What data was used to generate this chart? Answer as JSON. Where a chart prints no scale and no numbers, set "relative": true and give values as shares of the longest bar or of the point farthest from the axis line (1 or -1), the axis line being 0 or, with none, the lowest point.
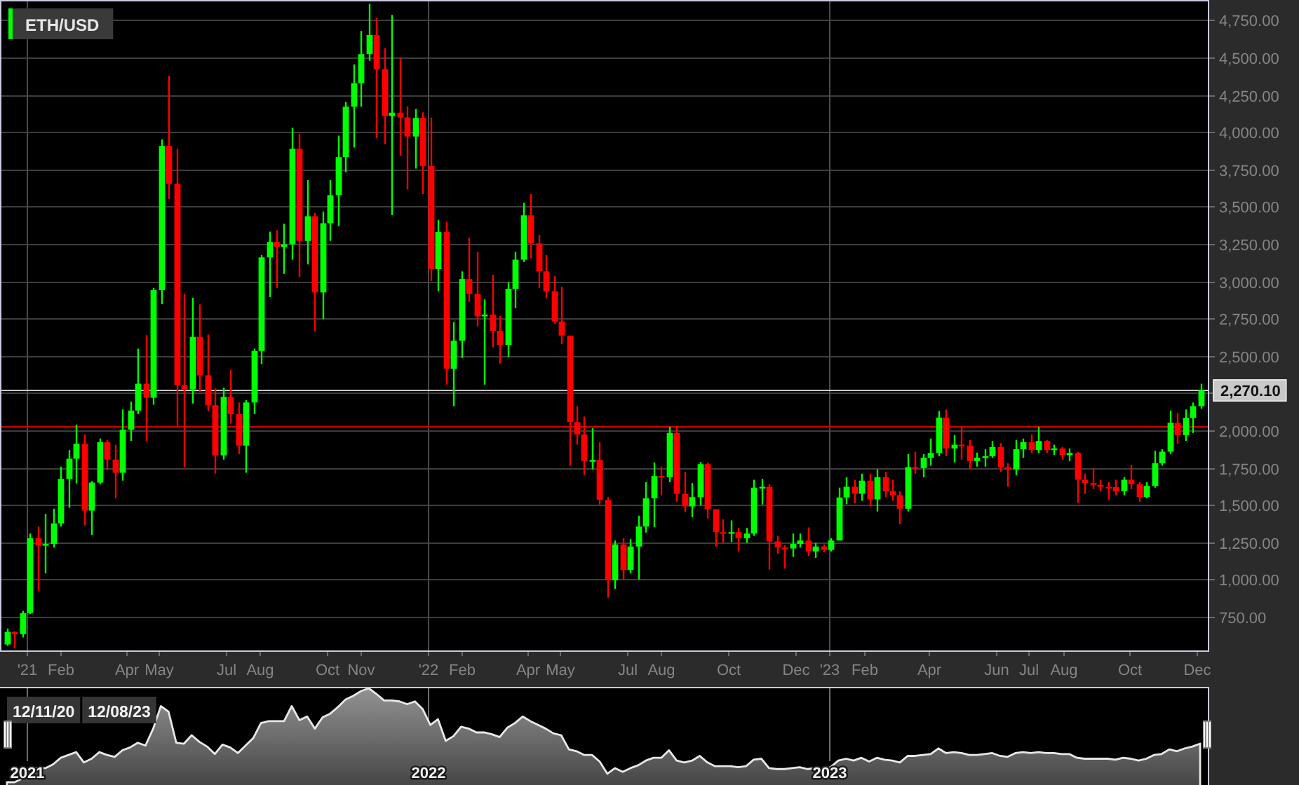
{
  "chart_data": [
    {
      "type": "candlestick",
      "x": [
        "2020-12-14",
        "2020-12-21",
        "2020-12-28",
        "2021-01-04",
        "2021-01-11",
        "2021-01-18",
        "2021-01-25",
        "2021-02-01",
        "2021-02-08",
        "2021-02-15",
        "2021-02-22",
        "2021-03-01",
        "2021-03-08",
        "2021-03-15",
        "2021-03-22",
        "2021-03-29",
        "2021-04-05",
        "2021-04-12",
        "2021-04-19",
        "2021-04-26",
        "2021-05-03",
        "2021-05-10",
        "2021-05-17",
        "2021-05-24",
        "2021-05-31",
        "2021-06-07",
        "2021-06-14",
        "2021-06-21",
        "2021-06-28",
        "2021-07-05",
        "2021-07-12",
        "2021-07-19",
        "2021-07-26",
        "2021-08-02",
        "2021-08-09",
        "2021-08-16",
        "2021-08-23",
        "2021-08-30",
        "2021-09-06",
        "2021-09-13",
        "2021-09-20",
        "2021-09-27",
        "2021-10-04",
        "2021-10-11",
        "2021-10-18",
        "2021-10-25",
        "2021-11-01",
        "2021-11-08",
        "2021-11-15",
        "2021-11-22",
        "2021-11-29",
        "2021-12-06",
        "2021-12-13",
        "2021-12-20",
        "2021-12-27",
        "2022-01-03",
        "2022-01-10",
        "2022-01-17",
        "2022-01-24",
        "2022-01-31",
        "2022-02-07",
        "2022-02-14",
        "2022-02-21",
        "2022-02-28",
        "2022-03-07",
        "2022-03-14",
        "2022-03-21",
        "2022-03-28",
        "2022-04-04",
        "2022-04-11",
        "2022-04-18",
        "2022-04-25",
        "2022-05-02",
        "2022-05-09",
        "2022-05-16",
        "2022-05-23",
        "2022-05-30",
        "2022-06-06",
        "2022-06-13",
        "2022-06-20",
        "2022-06-27",
        "2022-07-04",
        "2022-07-11",
        "2022-07-18",
        "2022-07-25",
        "2022-08-01",
        "2022-08-08",
        "2022-08-15",
        "2022-08-22",
        "2022-08-29",
        "2022-09-05",
        "2022-09-12",
        "2022-09-19",
        "2022-09-26",
        "2022-10-03",
        "2022-10-10",
        "2022-10-17",
        "2022-10-24",
        "2022-10-31",
        "2022-11-07",
        "2022-11-14",
        "2022-11-21",
        "2022-11-28",
        "2022-12-05",
        "2022-12-12",
        "2022-12-19",
        "2022-12-26",
        "2023-01-02",
        "2023-01-09",
        "2023-01-16",
        "2023-01-23",
        "2023-01-30",
        "2023-02-06",
        "2023-02-13",
        "2023-02-20",
        "2023-02-27",
        "2023-03-06",
        "2023-03-13",
        "2023-03-20",
        "2023-03-27",
        "2023-04-03",
        "2023-04-10",
        "2023-04-17",
        "2023-04-24",
        "2023-05-01",
        "2023-05-08",
        "2023-05-15",
        "2023-05-22",
        "2023-05-29",
        "2023-06-05",
        "2023-06-12",
        "2023-06-19",
        "2023-06-26",
        "2023-07-03",
        "2023-07-10",
        "2023-07-17",
        "2023-07-24",
        "2023-07-31",
        "2023-08-07",
        "2023-08-14",
        "2023-08-21",
        "2023-08-28",
        "2023-09-04",
        "2023-09-11",
        "2023-09-18",
        "2023-09-25",
        "2023-10-02",
        "2023-10-09",
        "2023-10-16",
        "2023-10-23",
        "2023-10-30",
        "2023-11-06",
        "2023-11-13",
        "2023-11-20",
        "2023-11-27",
        "2023-12-04"
      ],
      "series": [
        {
          "name": "ETH/USD",
          "color": "#00ff00",
          "ohlc": [
            [
              565,
              672,
              555,
              650
            ],
            [
              650,
              653,
              540,
              634
            ],
            [
              634,
              791,
              612,
              775
            ],
            [
              775,
              1308,
              768,
              1277
            ],
            [
              1277,
              1355,
              926,
              1227
            ],
            [
              1227,
              1440,
              1042,
              1239
            ],
            [
              1239,
              1475,
              1214,
              1377
            ],
            [
              1377,
              1757,
              1355,
              1675
            ],
            [
              1675,
              1867,
              1481,
              1810
            ],
            [
              1810,
              2039,
              1644,
              1911
            ],
            [
              1911,
              1973,
              1362,
              1462
            ],
            [
              1462,
              1660,
              1299,
              1650
            ],
            [
              1650,
              1945,
              1638,
              1920
            ],
            [
              1920,
              1936,
              1732,
              1804
            ],
            [
              1804,
              1904,
              1544,
              1716
            ],
            [
              1716,
              2140,
              1663,
              2005
            ],
            [
              2005,
              2193,
              1930,
              2133
            ],
            [
              2133,
              2547,
              2108,
              2312
            ],
            [
              2312,
              2638,
              1930,
              2218
            ],
            [
              2218,
              2955,
              2171,
              2940
            ],
            [
              2940,
              3950,
              2846,
              3906
            ],
            [
              3906,
              4376,
              3551,
              3652
            ],
            [
              3652,
              3887,
              2030,
              2303
            ],
            [
              2303,
              2915,
              1754,
              2275
            ],
            [
              2275,
              2889,
              2180,
              2626
            ],
            [
              2626,
              2845,
              2259,
              2369
            ],
            [
              2369,
              2642,
              2130,
              2168
            ],
            [
              2168,
              2281,
              1710,
              1832
            ],
            [
              1832,
              2287,
              1804,
              2224
            ],
            [
              2224,
              2406,
              2046,
              2108
            ],
            [
              2108,
              2187,
              1842,
              1898
            ],
            [
              1898,
              2202,
              1716,
              2187
            ],
            [
              2187,
              2547,
              2108,
              2532
            ],
            [
              2532,
              3175,
              2444,
              3159
            ],
            [
              3159,
              3332,
              2893,
              3263
            ],
            [
              3263,
              3341,
              2955,
              3228
            ],
            [
              3228,
              3385,
              3049,
              3247
            ],
            [
              3247,
              4028,
              3144,
              3887
            ],
            [
              3887,
              3987,
              3028,
              3269
            ],
            [
              3269,
              3677,
              3112,
              3435
            ],
            [
              3435,
              3457,
              2664,
              2924
            ],
            [
              2924,
              3467,
              2745,
              3388
            ],
            [
              3388,
              3677,
              3269,
              3576
            ],
            [
              3576,
              3975,
              3369,
              3831
            ],
            [
              3831,
              4201,
              3730,
              4169
            ],
            [
              4169,
              4452,
              3896,
              4326
            ],
            [
              4326,
              4677,
              4169,
              4521
            ],
            [
              4521,
              4859,
              4477,
              4649
            ],
            [
              4649,
              4765,
              3959,
              4420
            ],
            [
              4420,
              4561,
              3918,
              4107
            ],
            [
              4107,
              4784,
              3442,
              4129
            ],
            [
              4129,
              4499,
              3840,
              4097
            ],
            [
              4097,
              4172,
              3614,
              3969
            ],
            [
              3969,
              4154,
              3755,
              4094
            ],
            [
              4094,
              4132,
              3583,
              3771
            ],
            [
              3771,
              4096,
              3002,
              3081
            ],
            [
              3081,
              3410,
              2933,
              3329
            ],
            [
              3329,
              3395,
              2306,
              2413
            ],
            [
              2413,
              2726,
              2162,
              2601
            ],
            [
              2601,
              3065,
              2485,
              3015
            ],
            [
              3015,
              3291,
              2861,
              2915
            ],
            [
              2915,
              3197,
              2698,
              2764
            ],
            [
              2764,
              2877,
              2306,
              2776
            ],
            [
              2776,
              3043,
              2557,
              2667
            ],
            [
              2667,
              2767,
              2447,
              2573
            ],
            [
              2573,
              2993,
              2491,
              2949
            ],
            [
              2949,
              3197,
              2820,
              3144
            ],
            [
              3144,
              3526,
              3128,
              3441
            ],
            [
              3441,
              3583,
              3153,
              3253
            ],
            [
              3253,
              3310,
              2955,
              3065
            ],
            [
              3065,
              3175,
              2886,
              2933
            ],
            [
              2933,
              3034,
              2714,
              2729
            ],
            [
              2729,
              2962,
              2579,
              2635
            ],
            [
              2635,
              2635,
              1763,
              2055
            ],
            [
              2055,
              2162,
              1904,
              1973
            ],
            [
              1973,
              2093,
              1700,
              1795
            ],
            [
              1795,
              2014,
              1738,
              1801
            ],
            [
              1801,
              1920,
              1503,
              1534
            ],
            [
              1534,
              1553,
              879,
              995
            ],
            [
              995,
              1261,
              938,
              1236
            ],
            [
              1236,
              1277,
              995,
              1064
            ],
            [
              1064,
              1271,
              1042,
              1221
            ],
            [
              1221,
              1428,
              1001,
              1355
            ],
            [
              1355,
              1653,
              1315,
              1544
            ],
            [
              1544,
              1785,
              1352,
              1694
            ],
            [
              1694,
              1757,
              1566,
              1685
            ],
            [
              1685,
              2024,
              1653,
              1983
            ],
            [
              1983,
              2030,
              1522,
              1575
            ],
            [
              1575,
              1722,
              1450,
              1490
            ],
            [
              1490,
              1647,
              1418,
              1553
            ],
            [
              1553,
              1788,
              1497,
              1773
            ],
            [
              1773,
              1785,
              1409,
              1472
            ],
            [
              1472,
              1472,
              1221,
              1318
            ],
            [
              1318,
              1403,
              1246,
              1308
            ],
            [
              1308,
              1396,
              1252,
              1318
            ],
            [
              1318,
              1346,
              1189,
              1277
            ],
            [
              1277,
              1346,
              1246,
              1308
            ],
            [
              1308,
              1669,
              1293,
              1616
            ],
            [
              1616,
              1675,
              1503,
              1622
            ],
            [
              1622,
              1638,
              1067,
              1255
            ],
            [
              1255,
              1293,
              1173,
              1214
            ],
            [
              1214,
              1230,
              1073,
              1208
            ],
            [
              1208,
              1308,
              1152,
              1239
            ],
            [
              1239,
              1308,
              1214,
              1261
            ],
            [
              1261,
              1349,
              1158,
              1189
            ],
            [
              1189,
              1246,
              1145,
              1221
            ],
            [
              1221,
              1236,
              1183,
              1199
            ],
            [
              1199,
              1277,
              1189,
              1261
            ],
            [
              1261,
              1616,
              1261,
              1550
            ],
            [
              1550,
              1685,
              1506,
              1622
            ],
            [
              1622,
              1669,
              1512,
              1575
            ],
            [
              1575,
              1710,
              1528,
              1663
            ],
            [
              1663,
              1710,
              1490,
              1537
            ],
            [
              1537,
              1738,
              1456,
              1685
            ],
            [
              1685,
              1722,
              1553,
              1591
            ],
            [
              1591,
              1669,
              1528,
              1566
            ],
            [
              1566,
              1591,
              1371,
              1475
            ],
            [
              1475,
              1842,
              1456,
              1754
            ],
            [
              1754,
              1857,
              1710,
              1748
            ],
            [
              1748,
              1842,
              1685,
              1817
            ],
            [
              1817,
              1945,
              1763,
              1848
            ],
            [
              1848,
              2130,
              1826,
              2086
            ],
            [
              2086,
              2140,
              1826,
              1879
            ],
            [
              1879,
              1967,
              1785,
              1904
            ],
            [
              1904,
              2024,
              1804,
              1898
            ],
            [
              1898,
              1936,
              1741,
              1795
            ],
            [
              1795,
              1851,
              1757,
              1817
            ],
            [
              1817,
              1873,
              1757,
              1826
            ],
            [
              1826,
              1929,
              1817,
              1889
            ],
            [
              1889,
              1914,
              1722,
              1754
            ],
            [
              1754,
              1779,
              1622,
              1738
            ],
            [
              1738,
              1936,
              1700,
              1873
            ],
            [
              1873,
              1945,
              1817,
              1920
            ],
            [
              1920,
              1973,
              1848,
              1867
            ],
            [
              1867,
              2024,
              1848,
              1929
            ],
            [
              1929,
              1936,
              1848,
              1867
            ],
            [
              1867,
              1904,
              1835,
              1879
            ],
            [
              1879,
              1889,
              1804,
              1835
            ],
            [
              1835,
              1879,
              1795,
              1848
            ],
            [
              1848,
              1857,
              1512,
              1669
            ],
            [
              1669,
              1710,
              1575,
              1647
            ],
            [
              1647,
              1748,
              1606,
              1635
            ],
            [
              1635,
              1669,
              1591,
              1622
            ],
            [
              1622,
              1653,
              1534,
              1619
            ],
            [
              1619,
              1669,
              1566,
              1591
            ],
            [
              1591,
              1685,
              1566,
              1669
            ],
            [
              1669,
              1770,
              1606,
              1638
            ],
            [
              1638,
              1653,
              1522,
              1553
            ],
            [
              1553,
              1653,
              1544,
              1628
            ],
            [
              1628,
              1864,
              1616,
              1779
            ],
            [
              1779,
              1873,
              1763,
              1857
            ],
            [
              1857,
              2133,
              1842,
              2052
            ],
            [
              2052,
              2118,
              1911,
              1967
            ],
            [
              1967,
              2140,
              1930,
              2083
            ],
            [
              2083,
              2187,
              1983,
              2162
            ],
            [
              2162,
              2312,
              2146,
              2270.1
            ]
          ],
          "colors": [
            "#00ff00",
            "#ff0000",
            "#00ff00",
            "#00ff00",
            "#ff0000",
            "#00ff00",
            "#00ff00",
            "#00ff00",
            "#00ff00",
            "#00ff00",
            "#ff0000",
            "#00ff00",
            "#00ff00",
            "#ff0000",
            "#ff0000",
            "#00ff00",
            "#00ff00",
            "#00ff00",
            "#ff0000",
            "#00ff00",
            "#00ff00",
            "#ff0000",
            "#ff0000",
            "#ff0000",
            "#00ff00",
            "#ff0000",
            "#ff0000",
            "#ff0000",
            "#00ff00",
            "#ff0000",
            "#ff0000",
            "#00ff00",
            "#00ff00",
            "#00ff00",
            "#00ff00",
            "#ff0000",
            "#00ff00",
            "#00ff00",
            "#ff0000",
            "#00ff00",
            "#ff0000",
            "#00ff00",
            "#00ff00",
            "#00ff00",
            "#00ff00",
            "#00ff00",
            "#00ff00",
            "#00ff00",
            "#ff0000",
            "#ff0000",
            "#00ff00",
            "#ff0000",
            "#ff0000",
            "#00ff00",
            "#ff0000",
            "#ff0000",
            "#00ff00",
            "#ff0000",
            "#00ff00",
            "#00ff00",
            "#ff0000",
            "#ff0000",
            "#00ff00",
            "#ff0000",
            "#ff0000",
            "#00ff00",
            "#00ff00",
            "#00ff00",
            "#ff0000",
            "#ff0000",
            "#ff0000",
            "#ff0000",
            "#ff0000",
            "#ff0000",
            "#ff0000",
            "#ff0000",
            "#00ff00",
            "#ff0000",
            "#ff0000",
            "#00ff00",
            "#ff0000",
            "#00ff00",
            "#00ff00",
            "#00ff00",
            "#00ff00",
            "#ff0000",
            "#00ff00",
            "#ff0000",
            "#ff0000",
            "#00ff00",
            "#00ff00",
            "#ff0000",
            "#ff0000",
            "#ff0000",
            "#00ff00",
            "#ff0000",
            "#00ff00",
            "#00ff00",
            "#00ff00",
            "#ff0000",
            "#ff0000",
            "#ff0000",
            "#00ff00",
            "#00ff00",
            "#ff0000",
            "#00ff00",
            "#ff0000",
            "#00ff00",
            "#00ff00",
            "#00ff00",
            "#ff0000",
            "#00ff00",
            "#ff0000",
            "#00ff00",
            "#ff0000",
            "#ff0000",
            "#ff0000",
            "#00ff00",
            "#ff0000",
            "#00ff00",
            "#00ff00",
            "#00ff00",
            "#ff0000",
            "#00ff00",
            "#ff0000",
            "#ff0000",
            "#00ff00",
            "#00ff00",
            "#00ff00",
            "#ff0000",
            "#ff0000",
            "#00ff00",
            "#00ff00",
            "#ff0000",
            "#00ff00",
            "#ff0000",
            "#00ff00",
            "#ff0000",
            "#00ff00",
            "#ff0000",
            "#ff0000",
            "#ff0000",
            "#ff0000",
            "#ff0000",
            "#ff0000",
            "#00ff00",
            "#ff0000",
            "#ff0000",
            "#00ff00",
            "#00ff00",
            "#00ff00",
            "#00ff00",
            "#ff0000",
            "#00ff00",
            "#00ff00",
            "#00ff00"
          ]
        }
      ],
      "xlim": [
        "2020-12-09",
        "2023-12-11"
      ],
      "xticks": [
        {
          "value": "2021-01-01",
          "label": "'21"
        },
        {
          "value": "2021-02-01",
          "label": "Feb"
        },
        {
          "value": "2021-04-01",
          "label": "Apr"
        },
        {
          "value": "2021-05-01",
          "label": "May"
        },
        {
          "value": "2021-07-01",
          "label": "Jul"
        },
        {
          "value": "2021-08-01",
          "label": "Aug"
        },
        {
          "value": "2021-10-01",
          "label": "Oct"
        },
        {
          "value": "2021-11-01",
          "label": "Nov"
        },
        {
          "value": "2022-01-01",
          "label": "'22"
        },
        {
          "value": "2022-02-01",
          "label": "Feb"
        },
        {
          "value": "2022-04-01",
          "label": "Apr"
        },
        {
          "value": "2022-05-01",
          "label": "May"
        },
        {
          "value": "2022-07-01",
          "label": "Jul"
        },
        {
          "value": "2022-08-01",
          "label": "Aug"
        },
        {
          "value": "2022-10-01",
          "label": "Oct"
        },
        {
          "value": "2022-12-01",
          "label": "Dec"
        },
        {
          "value": "2023-01-01",
          "label": "'23"
        },
        {
          "value": "2023-02-01",
          "label": "Feb"
        },
        {
          "value": "2023-04-01",
          "label": "Apr"
        },
        {
          "value": "2023-06-01",
          "label": "Jun"
        },
        {
          "value": "2023-07-01",
          "label": "Jul"
        },
        {
          "value": "2023-08-01",
          "label": "Aug"
        },
        {
          "value": "2023-10-01",
          "label": "Oct"
        },
        {
          "value": "2023-12-01",
          "label": "Dec"
        }
      ],
      "ylim": [
        525,
        4875
      ],
      "yticks": [
        {
          "value": 750,
          "label": "750.00"
        },
        {
          "value": 1000,
          "label": "1,000.00"
        },
        {
          "value": 1250,
          "label": "1,250.00"
        },
        {
          "value": 1500,
          "label": "1,500.00"
        },
        {
          "value": 1750,
          "label": "1,750.00"
        },
        {
          "value": 2000,
          "label": "2,000.00"
        },
        {
          "value": 2250,
          "label": null
        },
        {
          "value": 2500,
          "label": "2,500.00"
        },
        {
          "value": 2750,
          "label": "2,750.00"
        },
        {
          "value": 3000,
          "label": "3,000.00"
        },
        {
          "value": 3250,
          "label": "3,250.00"
        },
        {
          "value": 3500,
          "label": "3,500.00"
        },
        {
          "value": 3750,
          "label": "3,750.00"
        },
        {
          "value": 4000,
          "label": "4,000.00"
        },
        {
          "value": 4250,
          "label": "4,250.00"
        },
        {
          "value": 4500,
          "label": "4,500.00"
        },
        {
          "value": 4750,
          "label": "4,750.00"
        }
      ],
      "grid": "y",
      "ref_lines": [
        {
          "axis": "x",
          "value": "2021-01-01",
          "color": "#4a4a4a"
        },
        {
          "axis": "x",
          "value": "2022-01-01",
          "color": "#4a4a4a"
        },
        {
          "axis": "x",
          "value": "2023-01-01",
          "color": "#4a4a4a"
        },
        {
          "axis": "y",
          "value": 2030,
          "color": "#d40000"
        },
        {
          "axis": "y",
          "value": 2270.1,
          "label": "2,270.10",
          "color": "#c8c8c8"
        }
      ],
      "legend": "top left"
    },
    {
      "type": "area",
      "relative": true,
      "x": [
        "2020-12-14",
        "2020-12-21",
        "2020-12-28",
        "2021-01-04",
        "2021-01-11",
        "2021-01-18",
        "2021-01-25",
        "2021-02-01",
        "2021-02-08",
        "2021-02-15",
        "2021-02-22",
        "2021-03-01",
        "2021-03-08",
        "2021-03-15",
        "2021-03-22",
        "2021-03-29",
        "2021-04-05",
        "2021-04-12",
        "2021-04-19",
        "2021-04-26",
        "2021-05-03",
        "2021-05-10",
        "2021-05-17",
        "2021-05-24",
        "2021-05-31",
        "2021-06-07",
        "2021-06-14",
        "2021-06-21",
        "2021-06-28",
        "2021-07-05",
        "2021-07-12",
        "2021-07-19",
        "2021-07-26",
        "2021-08-02",
        "2021-08-09",
        "2021-08-16",
        "2021-08-23",
        "2021-08-30",
        "2021-09-06",
        "2021-09-13",
        "2021-09-20",
        "2021-09-27",
        "2021-10-04",
        "2021-10-11",
        "2021-10-18",
        "2021-10-25",
        "2021-11-01",
        "2021-11-08",
        "2021-11-15",
        "2021-11-22",
        "2021-11-29",
        "2021-12-06",
        "2021-12-13",
        "2021-12-20",
        "2021-12-27",
        "2022-01-03",
        "2022-01-10",
        "2022-01-17",
        "2022-01-24",
        "2022-01-31",
        "2022-02-07",
        "2022-02-14",
        "2022-02-21",
        "2022-02-28",
        "2022-03-07",
        "2022-03-14",
        "2022-03-21",
        "2022-03-28",
        "2022-04-04",
        "2022-04-11",
        "2022-04-18",
        "2022-04-25",
        "2022-05-02",
        "2022-05-09",
        "2022-05-16",
        "2022-05-23",
        "2022-05-30",
        "2022-06-06",
        "2022-06-13",
        "2022-06-20",
        "2022-06-27",
        "2022-07-04",
        "2022-07-11",
        "2022-07-18",
        "2022-07-25",
        "2022-08-01",
        "2022-08-08",
        "2022-08-15",
        "2022-08-22",
        "2022-08-29",
        "2022-09-05",
        "2022-09-12",
        "2022-09-19",
        "2022-09-26",
        "2022-10-03",
        "2022-10-10",
        "2022-10-17",
        "2022-10-24",
        "2022-10-31",
        "2022-11-07",
        "2022-11-14",
        "2022-11-21",
        "2022-11-28",
        "2022-12-05",
        "2022-12-12",
        "2022-12-19",
        "2022-12-26",
        "2023-01-02",
        "2023-01-09",
        "2023-01-16",
        "2023-01-23",
        "2023-01-30",
        "2023-02-06",
        "2023-02-13",
        "2023-02-20",
        "2023-02-27",
        "2023-03-06",
        "2023-03-13",
        "2023-03-20",
        "2023-03-27",
        "2023-04-03",
        "2023-04-10",
        "2023-04-17",
        "2023-04-24",
        "2023-05-01",
        "2023-05-08",
        "2023-05-15",
        "2023-05-22",
        "2023-05-29",
        "2023-06-05",
        "2023-06-12",
        "2023-06-19",
        "2023-06-26",
        "2023-07-03",
        "2023-07-10",
        "2023-07-17",
        "2023-07-24",
        "2023-07-31",
        "2023-08-07",
        "2023-08-14",
        "2023-08-21",
        "2023-08-28",
        "2023-09-04",
        "2023-09-11",
        "2023-09-18",
        "2023-09-25",
        "2023-10-02",
        "2023-10-09",
        "2023-10-16",
        "2023-10-23",
        "2023-10-30",
        "2023-11-06",
        "2023-11-13",
        "2023-11-20",
        "2023-11-27",
        "2023-12-04"
      ],
      "series": [
        {
          "color": "#e8e8e8",
          "values": [
            0,
            0,
            0.04,
            0.16,
            0.15,
            0.15,
            0.19,
            0.26,
            0.29,
            0.32,
            0.21,
            0.25,
            0.32,
            0.29,
            0.27,
            0.34,
            0.37,
            0.42,
            0.39,
            0.57,
            0.81,
            0.75,
            0.42,
            0.41,
            0.5,
            0.43,
            0.38,
            0.3,
            0.4,
            0.37,
            0.31,
            0.39,
            0.47,
            0.63,
            0.65,
            0.65,
            0.65,
            0.81,
            0.66,
            0.7,
            0.57,
            0.69,
            0.73,
            0.8,
            0.88,
            0.92,
            0.97,
            1,
            0.94,
            0.87,
            0.87,
            0.86,
            0.83,
            0.86,
            0.78,
            0.61,
            0.67,
            0.44,
            0.49,
            0.59,
            0.57,
            0.53,
            0.53,
            0.51,
            0.48,
            0.58,
            0.63,
            0.7,
            0.65,
            0.61,
            0.57,
            0.52,
            0.5,
            0.35,
            0.33,
            0.29,
            0.29,
            0.22,
            0.09,
            0.15,
            0.11,
            0.15,
            0.18,
            0.23,
            0.26,
            0.26,
            0.34,
            0.23,
            0.21,
            0.23,
            0.28,
            0.21,
            0.17,
            0.17,
            0.17,
            0.16,
            0.17,
            0.24,
            0.25,
            0.15,
            0.14,
            0.14,
            0.15,
            0.16,
            0.14,
            0.15,
            0.14,
            0.16,
            0.23,
            0.25,
            0.23,
            0.26,
            0.22,
            0.26,
            0.24,
            0.23,
            0.21,
            0.28,
            0.28,
            0.29,
            0.3,
            0.36,
            0.31,
            0.32,
            0.31,
            0.29,
            0.29,
            0.3,
            0.31,
            0.28,
            0.27,
            0.31,
            0.32,
            0.31,
            0.32,
            0.31,
            0.31,
            0.3,
            0.3,
            0.26,
            0.25,
            0.25,
            0.25,
            0.25,
            0.24,
            0.26,
            0.25,
            0.23,
            0.25,
            0.29,
            0.3,
            0.35,
            0.33,
            0.36,
            0.38,
            0.41
          ]
        }
      ],
      "xlim": [
        "2020-12-09",
        "2023-12-11"
      ],
      "xticks": [
        {
          "value": "2021-01-01",
          "label": "2021"
        },
        {
          "value": "2022-01-01",
          "label": "2022"
        },
        {
          "value": "2023-01-01",
          "label": "2023"
        }
      ],
      "grid": "x",
      "tick_labels": "x",
      "annotations": [
        "12/11/20",
        "12/08/23"
      ]
    }
  ]
}
